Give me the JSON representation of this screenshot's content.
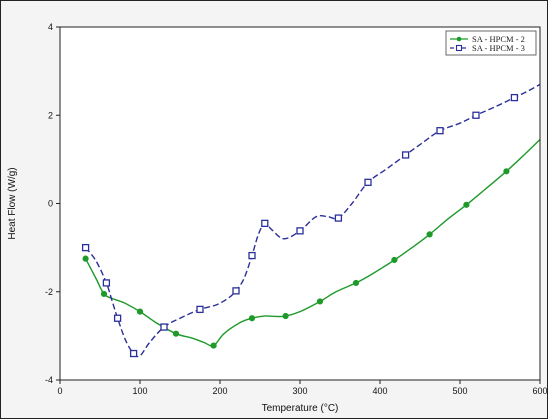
{
  "chart_data": {
    "type": "line",
    "title": "",
    "xlabel": "Temperature (°C)",
    "ylabel": "Heat Flow (W/g)",
    "xlim": [
      0,
      600
    ],
    "ylim": [
      -4,
      4
    ],
    "x_ticks": [
      "0",
      "100",
      "200",
      "300",
      "400",
      "500",
      "600"
    ],
    "y_ticks": [
      "4",
      "2",
      "0",
      "-2",
      "-4"
    ],
    "grid": false,
    "legend_position": "top-right",
    "series": [
      {
        "name": "SA - HPCM - 2",
        "color": "#1e9a2a",
        "line_style": "solid",
        "marker": "filled-circle",
        "curve": [
          [
            32,
            -1.25
          ],
          [
            45,
            -1.7
          ],
          [
            55,
            -2.05
          ],
          [
            65,
            -2.15
          ],
          [
            80,
            -2.25
          ],
          [
            100,
            -2.45
          ],
          [
            120,
            -2.7
          ],
          [
            145,
            -2.95
          ],
          [
            165,
            -3.05
          ],
          [
            180,
            -3.15
          ],
          [
            192,
            -3.22
          ],
          [
            205,
            -2.95
          ],
          [
            225,
            -2.7
          ],
          [
            240,
            -2.6
          ],
          [
            255,
            -2.55
          ],
          [
            270,
            -2.56
          ],
          [
            282,
            -2.55
          ],
          [
            300,
            -2.45
          ],
          [
            325,
            -2.22
          ],
          [
            345,
            -2.0
          ],
          [
            370,
            -1.8
          ],
          [
            390,
            -1.6
          ],
          [
            418,
            -1.28
          ],
          [
            440,
            -1.0
          ],
          [
            462,
            -0.7
          ],
          [
            485,
            -0.35
          ],
          [
            508,
            -0.03
          ],
          [
            530,
            0.3
          ],
          [
            558,
            0.73
          ],
          [
            580,
            1.1
          ],
          [
            600,
            1.45
          ]
        ],
        "markers": [
          [
            32,
            -1.25
          ],
          [
            55,
            -2.05
          ],
          [
            100,
            -2.45
          ],
          [
            145,
            -2.95
          ],
          [
            192,
            -3.22
          ],
          [
            240,
            -2.6
          ],
          [
            282,
            -2.55
          ],
          [
            325,
            -2.22
          ],
          [
            370,
            -1.8
          ],
          [
            418,
            -1.28
          ],
          [
            462,
            -0.7
          ],
          [
            508,
            -0.03
          ],
          [
            558,
            0.73
          ]
        ]
      },
      {
        "name": "SA - HPCM - 3",
        "color": "#2a2f9a",
        "line_style": "dashed",
        "marker": "open-square",
        "curve": [
          [
            32,
            -1.0
          ],
          [
            45,
            -1.3
          ],
          [
            58,
            -1.8
          ],
          [
            65,
            -2.2
          ],
          [
            72,
            -2.6
          ],
          [
            82,
            -3.1
          ],
          [
            92,
            -3.4
          ],
          [
            100,
            -3.45
          ],
          [
            112,
            -3.15
          ],
          [
            130,
            -2.8
          ],
          [
            150,
            -2.6
          ],
          [
            175,
            -2.4
          ],
          [
            195,
            -2.3
          ],
          [
            210,
            -2.15
          ],
          [
            220,
            -1.98
          ],
          [
            230,
            -1.7
          ],
          [
            240,
            -1.18
          ],
          [
            248,
            -0.7
          ],
          [
            256,
            -0.45
          ],
          [
            265,
            -0.6
          ],
          [
            280,
            -0.8
          ],
          [
            300,
            -0.62
          ],
          [
            320,
            -0.3
          ],
          [
            335,
            -0.3
          ],
          [
            348,
            -0.33
          ],
          [
            365,
            0.0
          ],
          [
            385,
            0.48
          ],
          [
            408,
            0.78
          ],
          [
            432,
            1.1
          ],
          [
            455,
            1.4
          ],
          [
            475,
            1.65
          ],
          [
            500,
            1.82
          ],
          [
            520,
            2.0
          ],
          [
            545,
            2.2
          ],
          [
            568,
            2.4
          ],
          [
            585,
            2.55
          ],
          [
            600,
            2.7
          ]
        ],
        "markers": [
          [
            32,
            -1.0
          ],
          [
            58,
            -1.8
          ],
          [
            72,
            -2.6
          ],
          [
            92,
            -3.4
          ],
          [
            130,
            -2.8
          ],
          [
            175,
            -2.4
          ],
          [
            220,
            -1.98
          ],
          [
            240,
            -1.18
          ],
          [
            256,
            -0.45
          ],
          [
            300,
            -0.62
          ],
          [
            348,
            -0.33
          ],
          [
            385,
            0.48
          ],
          [
            432,
            1.1
          ],
          [
            475,
            1.65
          ],
          [
            520,
            2.0
          ],
          [
            568,
            2.4
          ]
        ]
      }
    ]
  }
}
